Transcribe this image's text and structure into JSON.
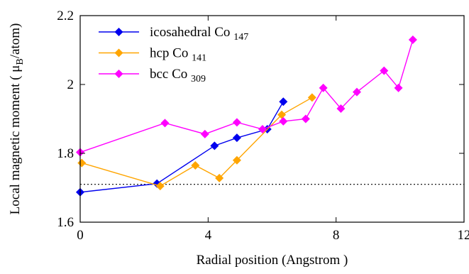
{
  "chart_data": {
    "type": "line",
    "xlabel": "Radial position (Angstrom )",
    "ylabel_main": "Local magnetic moment ( μ",
    "ylabel_sub": "B",
    "ylabel_tail": "/atom)",
    "xlim": [
      0,
      12
    ],
    "ylim": [
      1.6,
      2.2
    ],
    "xticks": [
      0,
      4,
      8,
      12
    ],
    "yticks": [
      1.6,
      1.8,
      2,
      2.2
    ],
    "xtick_labels": [
      "0",
      "4",
      "8",
      "12"
    ],
    "ytick_labels": [
      "1.6",
      "1.8",
      "2",
      "2.2"
    ],
    "grid": false,
    "legend_position": "top-left",
    "reference_line": {
      "y": 1.71,
      "style": "dotted"
    },
    "series": [
      {
        "name": "icosahedral Co",
        "subscript": "147",
        "color": "#0000ee",
        "marker": "diamond",
        "x": [
          0.0,
          2.4,
          4.2,
          4.9,
          5.85,
          6.35
        ],
        "y": [
          1.687,
          1.712,
          1.822,
          1.845,
          1.87,
          1.95
        ]
      },
      {
        "name": "hcp Co",
        "subscript": "141",
        "color": "#ffa500",
        "marker": "diamond",
        "x": [
          0.05,
          2.5,
          3.6,
          4.35,
          4.9,
          6.3,
          7.25
        ],
        "y": [
          1.772,
          1.705,
          1.765,
          1.728,
          1.78,
          1.912,
          1.962
        ]
      },
      {
        "name": "bcc Co",
        "subscript": "309",
        "color": "#ff00ff",
        "marker": "diamond",
        "x": [
          0.0,
          2.65,
          3.9,
          4.9,
          5.7,
          6.35,
          7.05,
          7.6,
          8.15,
          8.65,
          9.5,
          9.95,
          10.4
        ],
        "y": [
          1.803,
          1.888,
          1.856,
          1.89,
          1.87,
          1.893,
          1.9,
          1.99,
          1.93,
          1.978,
          2.04,
          1.99,
          2.13
        ]
      }
    ]
  }
}
